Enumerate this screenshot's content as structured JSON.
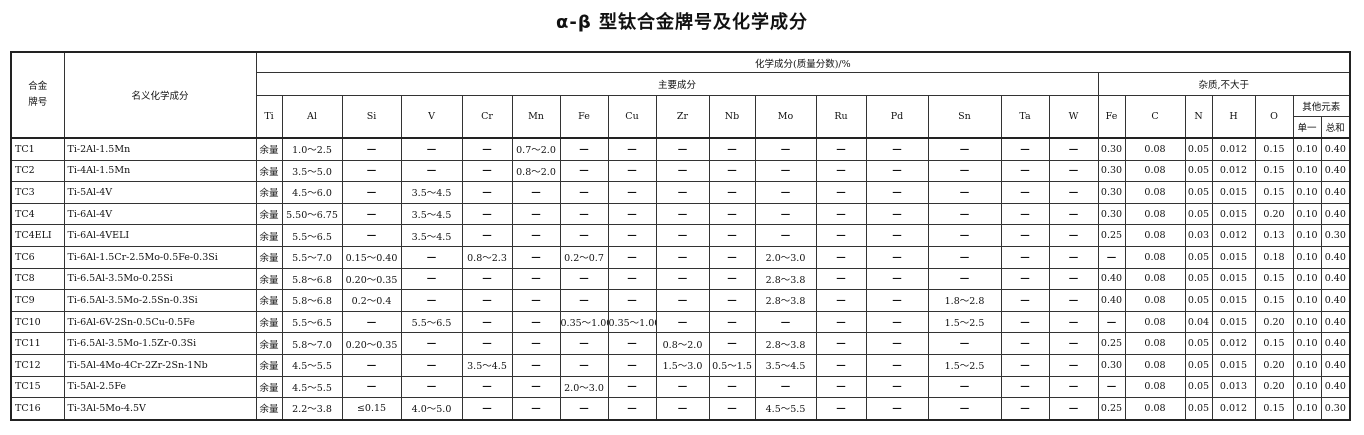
{
  "title": "α-β 型钛合金牌号及化学成分",
  "header": {
    "grade": "合金\n牌号",
    "nominal": "名义化学成分",
    "chem": "化学成分(质量分数)/%",
    "main": "主要成分",
    "impurity": "杂质,不大于",
    "main_cols": [
      "Ti",
      "Al",
      "Si",
      "V",
      "Cr",
      "Mn",
      "Fe",
      "Cu",
      "Zr",
      "Nb",
      "Mo",
      "Ru",
      "Pd",
      "Sn",
      "Ta",
      "W"
    ],
    "imp_cols": [
      "Fe",
      "C",
      "N",
      "H",
      "O"
    ],
    "other": "其他元素",
    "single": "单一",
    "total": "总和"
  },
  "rows": [
    [
      "TC1",
      "Ti-2Al-1.5Mn",
      "余量",
      "1.0～2.5",
      "—",
      "—",
      "—",
      "0.7～2.0",
      "—",
      "—",
      "—",
      "—",
      "—",
      "—",
      "—",
      "—",
      "—",
      "—",
      "0.30",
      "0.08",
      "0.05",
      "0.012",
      "0.15",
      "0.10",
      "0.40"
    ],
    [
      "TC2",
      "Ti-4Al-1.5Mn",
      "余量",
      "3.5～5.0",
      "—",
      "—",
      "—",
      "0.8～2.0",
      "—",
      "—",
      "—",
      "—",
      "—",
      "—",
      "—",
      "—",
      "—",
      "—",
      "0.30",
      "0.08",
      "0.05",
      "0.012",
      "0.15",
      "0.10",
      "0.40"
    ],
    [
      "TC3",
      "Ti-5Al-4V",
      "余量",
      "4.5～6.0",
      "—",
      "3.5～4.5",
      "—",
      "—",
      "—",
      "—",
      "—",
      "—",
      "—",
      "—",
      "—",
      "—",
      "—",
      "—",
      "0.30",
      "0.08",
      "0.05",
      "0.015",
      "0.15",
      "0.10",
      "0.40"
    ],
    [
      "TC4",
      "Ti-6Al-4V",
      "余量",
      "5.50～6.75",
      "—",
      "3.5～4.5",
      "—",
      "—",
      "—",
      "—",
      "—",
      "—",
      "—",
      "—",
      "—",
      "—",
      "—",
      "—",
      "0.30",
      "0.08",
      "0.05",
      "0.015",
      "0.20",
      "0.10",
      "0.40"
    ],
    [
      "TC4ELI",
      "Ti-6Al-4VELI",
      "余量",
      "5.5～6.5",
      "—",
      "3.5～4.5",
      "—",
      "—",
      "—",
      "—",
      "—",
      "—",
      "—",
      "—",
      "—",
      "—",
      "—",
      "—",
      "0.25",
      "0.08",
      "0.03",
      "0.012",
      "0.13",
      "0.10",
      "0.30"
    ],
    [
      "TC6",
      "Ti-6Al-1.5Cr-2.5Mo-0.5Fe-0.3Si",
      "余量",
      "5.5～7.0",
      "0.15～0.40",
      "—",
      "0.8～2.3",
      "—",
      "0.2～0.7",
      "—",
      "—",
      "—",
      "2.0～3.0",
      "—",
      "—",
      "—",
      "—",
      "—",
      "—",
      "0.08",
      "0.05",
      "0.015",
      "0.18",
      "0.10",
      "0.40"
    ],
    [
      "TC8",
      "Ti-6.5Al-3.5Mo-0.25Si",
      "余量",
      "5.8～6.8",
      "0.20～0.35",
      "—",
      "—",
      "—",
      "—",
      "—",
      "—",
      "—",
      "2.8～3.8",
      "—",
      "—",
      "—",
      "—",
      "—",
      "0.40",
      "0.08",
      "0.05",
      "0.015",
      "0.15",
      "0.10",
      "0.40"
    ],
    [
      "TC9",
      "Ti-6.5Al-3.5Mo-2.5Sn-0.3Si",
      "余量",
      "5.8～6.8",
      "0.2～0.4",
      "—",
      "—",
      "—",
      "—",
      "—",
      "—",
      "—",
      "2.8～3.8",
      "—",
      "—",
      "1.8～2.8",
      "—",
      "—",
      "0.40",
      "0.08",
      "0.05",
      "0.015",
      "0.15",
      "0.10",
      "0.40"
    ],
    [
      "TC10",
      "Ti-6Al-6V-2Sn-0.5Cu-0.5Fe",
      "余量",
      "5.5～6.5",
      "—",
      "5.5～6.5",
      "—",
      "—",
      "0.35～1.00",
      "0.35～1.00",
      "—",
      "—",
      "—",
      "—",
      "—",
      "1.5～2.5",
      "—",
      "—",
      "—",
      "0.08",
      "0.04",
      "0.015",
      "0.20",
      "0.10",
      "0.40"
    ],
    [
      "TC11",
      "Ti-6.5Al-3.5Mo-1.5Zr-0.3Si",
      "余量",
      "5.8～7.0",
      "0.20～0.35",
      "—",
      "—",
      "—",
      "—",
      "—",
      "0.8～2.0",
      "—",
      "2.8～3.8",
      "—",
      "—",
      "—",
      "—",
      "—",
      "0.25",
      "0.08",
      "0.05",
      "0.012",
      "0.15",
      "0.10",
      "0.40"
    ],
    [
      "TC12",
      "Ti-5Al-4Mo-4Cr-2Zr-2Sn-1Nb",
      "余量",
      "4.5～5.5",
      "—",
      "—",
      "3.5～4.5",
      "—",
      "—",
      "—",
      "1.5～3.0",
      "0.5～1.5",
      "3.5～4.5",
      "—",
      "—",
      "1.5～2.5",
      "—",
      "—",
      "0.30",
      "0.08",
      "0.05",
      "0.015",
      "0.20",
      "0.10",
      "0.40"
    ],
    [
      "TC15",
      "Ti-5Al-2.5Fe",
      "余量",
      "4.5～5.5",
      "—",
      "—",
      "—",
      "—",
      "2.0～3.0",
      "—",
      "—",
      "—",
      "—",
      "—",
      "—",
      "—",
      "—",
      "—",
      "—",
      "0.08",
      "0.05",
      "0.013",
      "0.20",
      "0.10",
      "0.40"
    ],
    [
      "TC16",
      "Ti-3Al-5Mo-4.5V",
      "余量",
      "2.2～3.8",
      "≤0.15",
      "4.0～5.0",
      "—",
      "—",
      "—",
      "—",
      "—",
      "—",
      "4.5～5.5",
      "—",
      "—",
      "—",
      "—",
      "—",
      "0.25",
      "0.08",
      "0.05",
      "0.012",
      "0.15",
      "0.10",
      "0.30"
    ]
  ]
}
